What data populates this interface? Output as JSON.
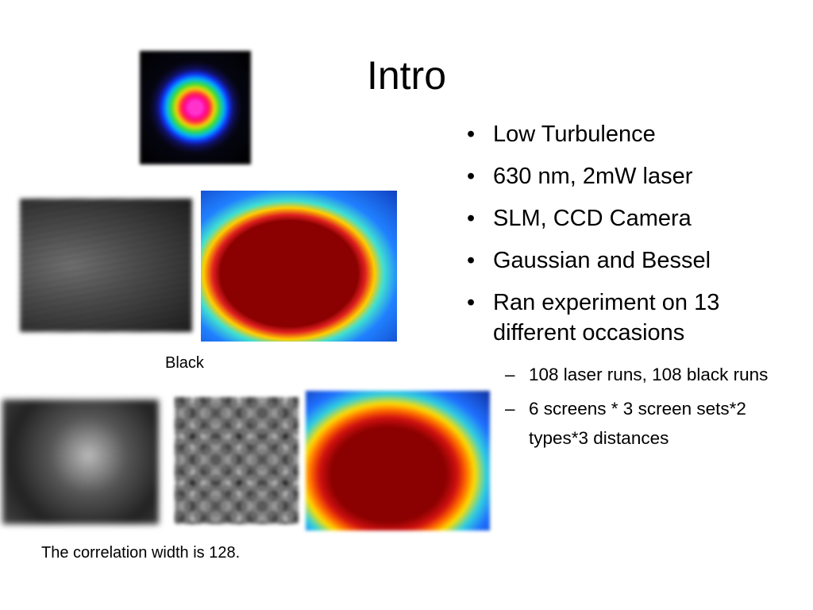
{
  "slide": {
    "title": "Intro",
    "bullets": [
      {
        "text": "Low Turbulence"
      },
      {
        "text": "630 nm, 2mW laser"
      },
      {
        "text": "SLM, CCD Camera"
      },
      {
        "text": "Gaussian and Bessel"
      },
      {
        "text": "Ran experiment  on 13 different occasions",
        "sub": [
          "108 laser runs, 108 black runs",
          "6 screens * 3 screen sets*2 types*3 distances"
        ]
      }
    ],
    "image_label": "Black",
    "caption": "The correlation width is 128."
  }
}
